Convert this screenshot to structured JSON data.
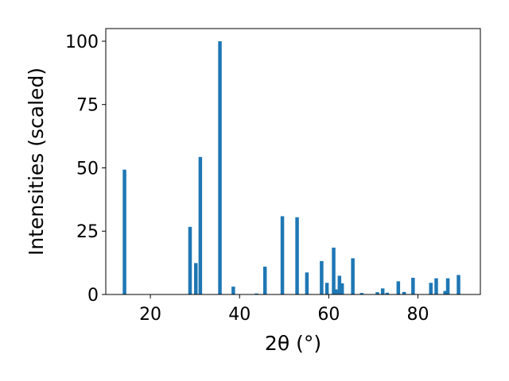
{
  "chart_data": {
    "type": "bar",
    "xlabel": "2θ (°)",
    "ylabel": "Intensities (scaled)",
    "xlim": [
      10,
      94
    ],
    "ylim": [
      0,
      105
    ],
    "x_ticks": [
      20,
      40,
      60,
      80
    ],
    "y_ticks": [
      0,
      25,
      50,
      75,
      100
    ],
    "grid": false,
    "bar_color": "#1f77b4",
    "points": [
      {
        "x": 14.2,
        "y": 49.3
      },
      {
        "x": 28.9,
        "y": 26.7
      },
      {
        "x": 30.2,
        "y": 12.4
      },
      {
        "x": 31.2,
        "y": 54.3
      },
      {
        "x": 35.6,
        "y": 100
      },
      {
        "x": 38.6,
        "y": 3.1
      },
      {
        "x": 43.8,
        "y": 0.4
      },
      {
        "x": 45.7,
        "y": 11.0
      },
      {
        "x": 49.6,
        "y": 30.9
      },
      {
        "x": 52.9,
        "y": 30.5
      },
      {
        "x": 55.1,
        "y": 8.7
      },
      {
        "x": 58.4,
        "y": 13.2
      },
      {
        "x": 59.6,
        "y": 4.6
      },
      {
        "x": 61.1,
        "y": 18.5
      },
      {
        "x": 61.6,
        "y": 2.0
      },
      {
        "x": 62.4,
        "y": 7.4
      },
      {
        "x": 63.0,
        "y": 4.4
      },
      {
        "x": 65.4,
        "y": 14.3
      },
      {
        "x": 67.4,
        "y": 0.6
      },
      {
        "x": 70.9,
        "y": 0.9
      },
      {
        "x": 72.1,
        "y": 2.4
      },
      {
        "x": 73.1,
        "y": 0.7
      },
      {
        "x": 75.6,
        "y": 5.2
      },
      {
        "x": 76.9,
        "y": 1.0
      },
      {
        "x": 78.9,
        "y": 6.6
      },
      {
        "x": 82.9,
        "y": 4.6
      },
      {
        "x": 84.1,
        "y": 6.4
      },
      {
        "x": 86.1,
        "y": 1.4
      },
      {
        "x": 86.7,
        "y": 6.4
      },
      {
        "x": 89.1,
        "y": 7.7
      }
    ]
  }
}
